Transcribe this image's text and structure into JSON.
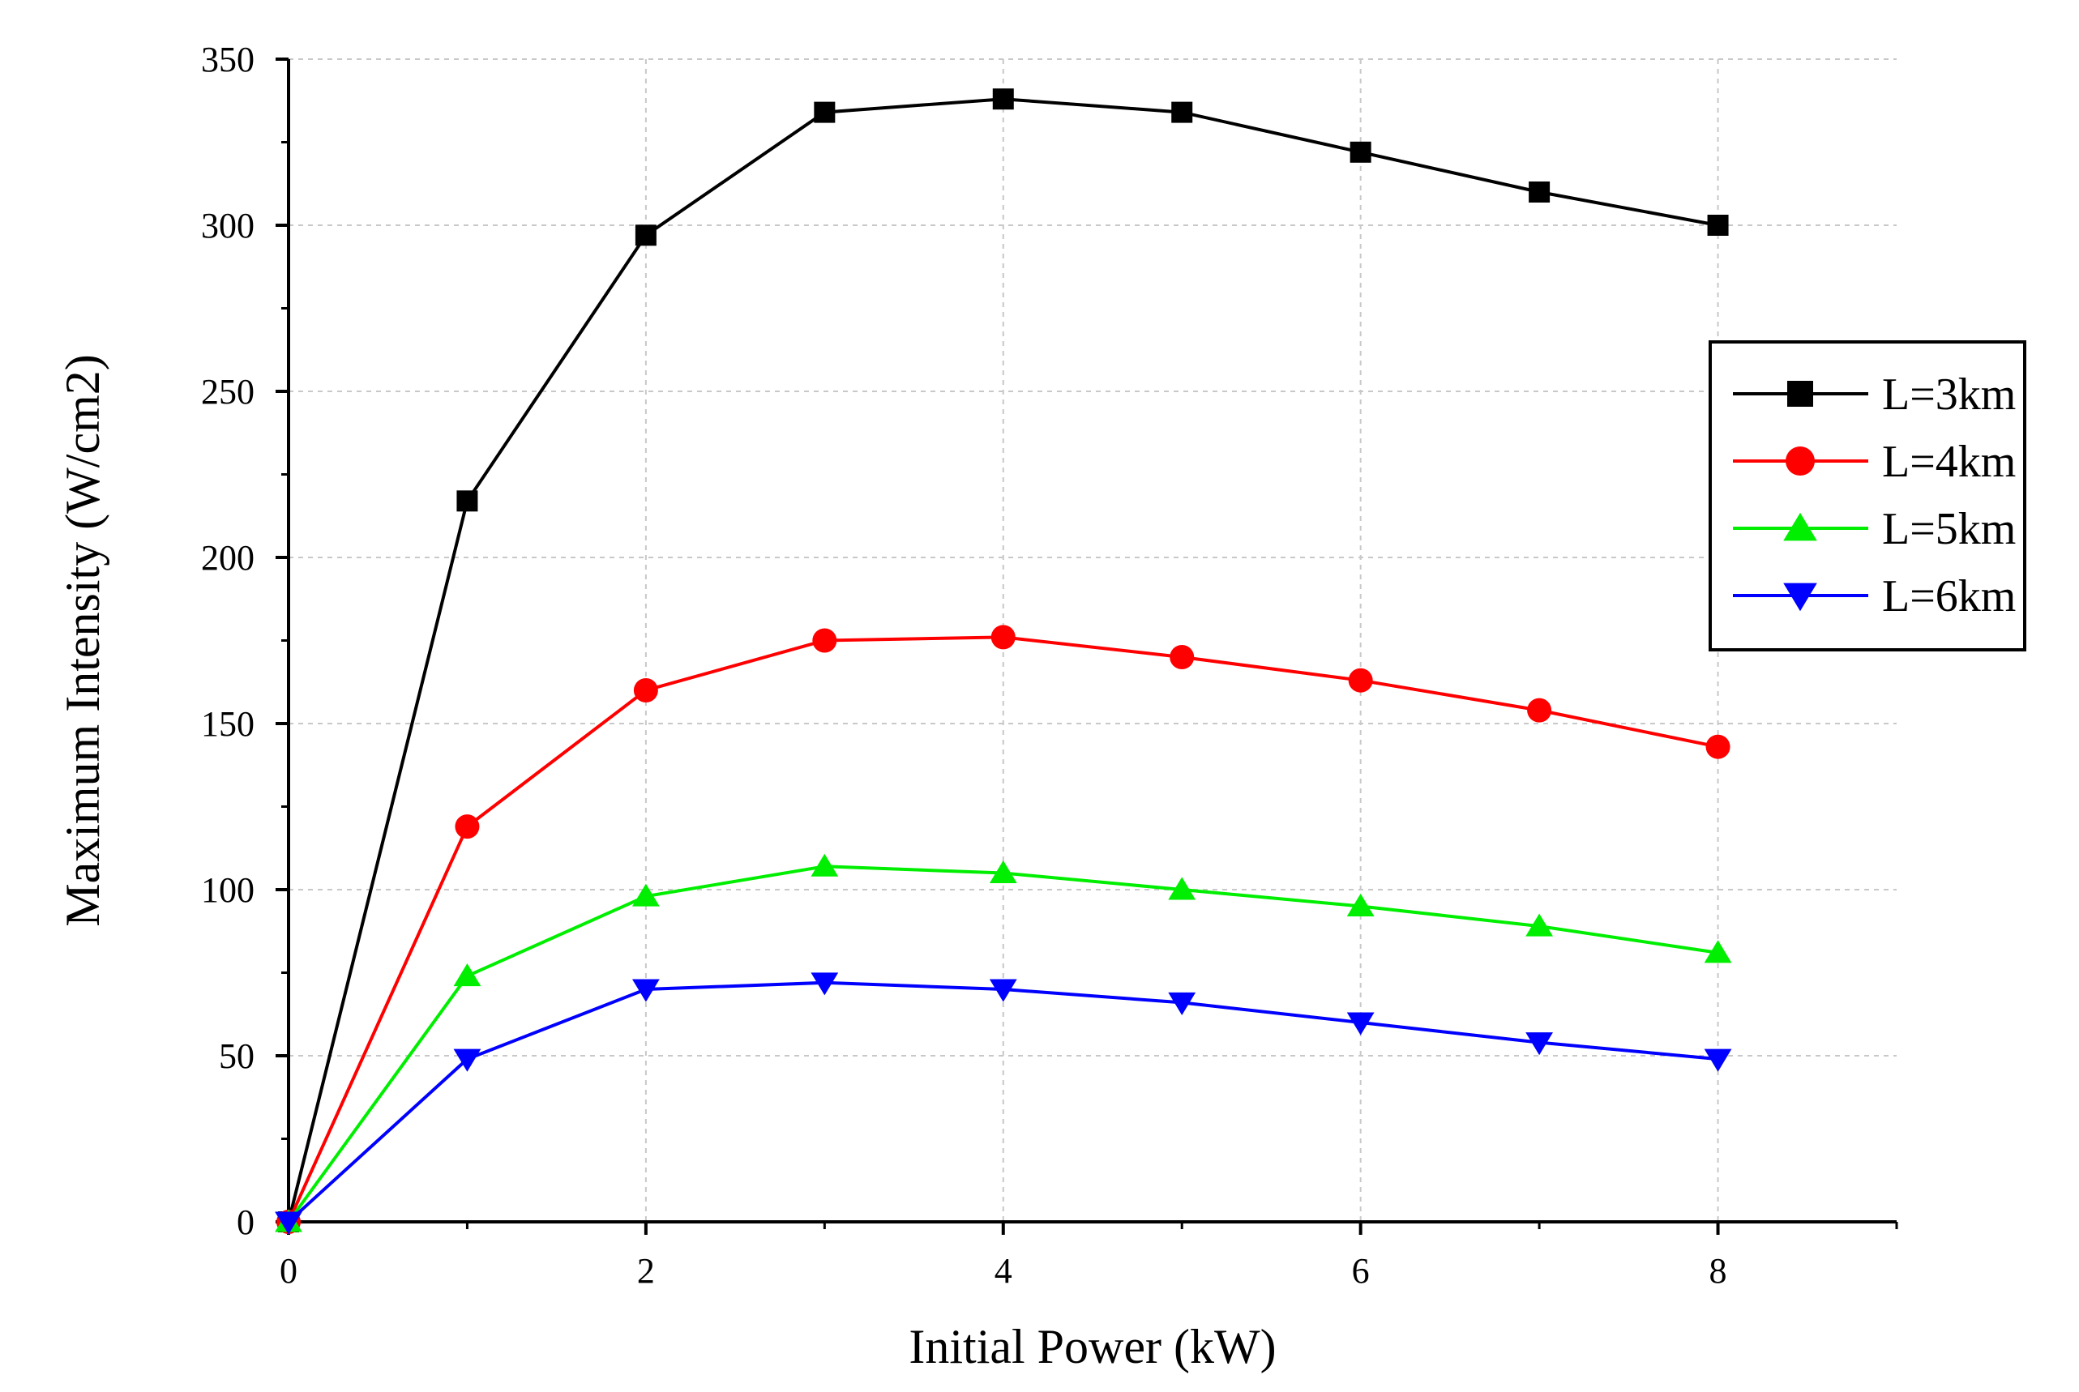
{
  "chart_data": {
    "type": "line",
    "title": "",
    "xlabel": "Initial Power (kW)",
    "ylabel": "Maximum Intensity (W/cm2)",
    "xlim": [
      0,
      9
    ],
    "ylim": [
      0,
      350
    ],
    "xticks": [
      0,
      2,
      4,
      6,
      8
    ],
    "yticks": [
      0,
      50,
      100,
      150,
      200,
      250,
      300,
      350
    ],
    "grid": true,
    "legend_position": "right",
    "x": [
      0,
      1,
      2,
      3,
      4,
      5,
      6,
      7,
      8
    ],
    "series": [
      {
        "name": "L=3km",
        "color": "#000000",
        "marker": "square",
        "values": [
          0,
          217,
          297,
          334,
          338,
          334,
          322,
          310,
          300
        ]
      },
      {
        "name": "L=4km",
        "color": "#ff0000",
        "marker": "circle",
        "values": [
          0,
          119,
          160,
          175,
          176,
          170,
          163,
          154,
          143
        ]
      },
      {
        "name": "L=5km",
        "color": "#00ee00",
        "marker": "triangle-up",
        "values": [
          0,
          74,
          98,
          107,
          105,
          100,
          95,
          89,
          81
        ]
      },
      {
        "name": "L=6km",
        "color": "#0000ff",
        "marker": "triangle-down",
        "values": [
          0,
          49,
          70,
          72,
          70,
          66,
          60,
          54,
          49
        ]
      }
    ]
  }
}
